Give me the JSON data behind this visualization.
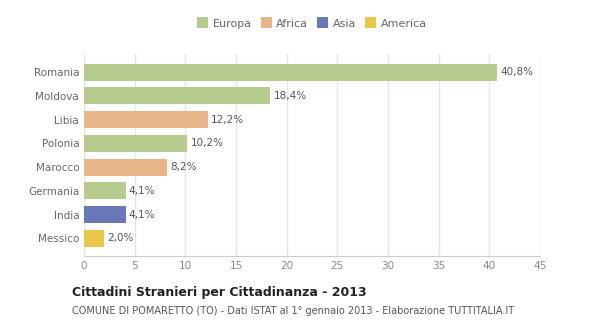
{
  "categories": [
    "Romania",
    "Moldova",
    "Libia",
    "Polonia",
    "Marocco",
    "Germania",
    "India",
    "Messico"
  ],
  "values": [
    40.8,
    18.4,
    12.2,
    10.2,
    8.2,
    4.1,
    4.1,
    2.0
  ],
  "labels": [
    "40,8%",
    "18,4%",
    "12,2%",
    "10,2%",
    "8,2%",
    "4,1%",
    "4,1%",
    "2,0%"
  ],
  "colors": [
    "#b5cc8e",
    "#b5cc8e",
    "#e8b48a",
    "#b5cc8e",
    "#e8b48a",
    "#b5cc8e",
    "#6878b8",
    "#e8c84a"
  ],
  "legend_labels": [
    "Europa",
    "Africa",
    "Asia",
    "America"
  ],
  "legend_colors": [
    "#b5cc8e",
    "#e8b48a",
    "#6878b8",
    "#e8c84a"
  ],
  "xlim": [
    0,
    45
  ],
  "xticks": [
    0,
    5,
    10,
    15,
    20,
    25,
    30,
    35,
    40,
    45
  ],
  "title": "Cittadini Stranieri per Cittadinanza - 2013",
  "subtitle": "COMUNE DI POMARETTO (TO) - Dati ISTAT al 1° gennaio 2013 - Elaborazione TUTTITALIA.IT",
  "bg_color": "#ffffff",
  "plot_bg_color": "#ffffff",
  "bar_height": 0.72,
  "grid_color": "#e0e8e0",
  "title_fontsize": 9,
  "subtitle_fontsize": 7,
  "label_fontsize": 7.5,
  "tick_fontsize": 7.5,
  "legend_fontsize": 8,
  "ylabel_color": "#666666",
  "tick_color": "#888888"
}
